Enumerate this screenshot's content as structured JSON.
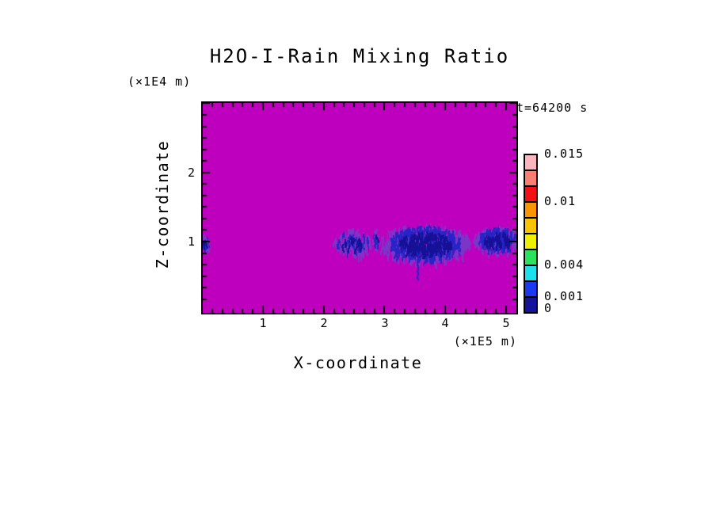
{
  "chart_data": {
    "type": "heatmap",
    "title": "H2O-I-Rain Mixing Ratio",
    "time_label": "t=64200 s",
    "xlabel": "X-coordinate",
    "zlabel": "Z-coordinate",
    "x_unit": "(×1E5 m)",
    "z_unit": "(×1E4 m)",
    "x_ticks": [
      1,
      2,
      3,
      4,
      5
    ],
    "z_ticks": [
      1,
      2
    ],
    "xlim": [
      0,
      5.17
    ],
    "zlim": [
      0,
      3.03
    ],
    "grid": false,
    "background_value_color": "#BE00BE",
    "field_colors": {
      "fringe": "#7C35C9",
      "mid": "#2823C6",
      "core": "#151095"
    },
    "colorbar": {
      "position": "right",
      "colors_top_to_bottom": [
        "#FBB6BD",
        "#F97F72",
        "#F30F14",
        "#FA9400",
        "#FAC300",
        "#EEF000",
        "#2BE35B",
        "#1CE1ED",
        "#1A39F0",
        "#15129C"
      ],
      "tick_labels": [
        {
          "text": "0.015",
          "boundary": 0,
          "dy": 0
        },
        {
          "text": "0.01",
          "boundary": 3,
          "dy": 0
        },
        {
          "text": "0.004",
          "boundary": 7,
          "dy": 0
        },
        {
          "text": "0.001",
          "boundary": 9,
          "dy": 0
        },
        {
          "text": "0",
          "boundary": 10,
          "dy": -5
        }
      ]
    },
    "rain_patches": [
      {
        "id": "left-edge-speck",
        "cx": 0.03,
        "cz": 1.05,
        "rx": 0.07,
        "rz": 0.1,
        "streaks": 16,
        "core_frac": 0.3,
        "seed": 7
      },
      {
        "id": "left-cluster",
        "cx": 2.47,
        "cz": 1.04,
        "rx": 0.32,
        "rz": 0.15,
        "streaks": 85,
        "core_frac": 0.35,
        "seed": 13
      },
      {
        "id": "mid-speck",
        "cx": 2.85,
        "cz": 1.08,
        "rx": 0.04,
        "rz": 0.1,
        "streaks": 12,
        "core_frac": 0.35,
        "seed": 29
      },
      {
        "id": "main-cluster",
        "cx": 3.66,
        "cz": 1.03,
        "rx": 0.73,
        "rz": 0.25,
        "streaks": 340,
        "core_frac": 0.85,
        "seed": 43
      },
      {
        "id": "right-cluster",
        "cx": 4.85,
        "cz": 1.08,
        "rx": 0.37,
        "rz": 0.16,
        "streaks": 150,
        "core_frac": 0.6,
        "seed": 59
      }
    ],
    "fall_streak": {
      "x": 3.54,
      "z_top": 0.84,
      "z_bottom": 0.46
    }
  }
}
